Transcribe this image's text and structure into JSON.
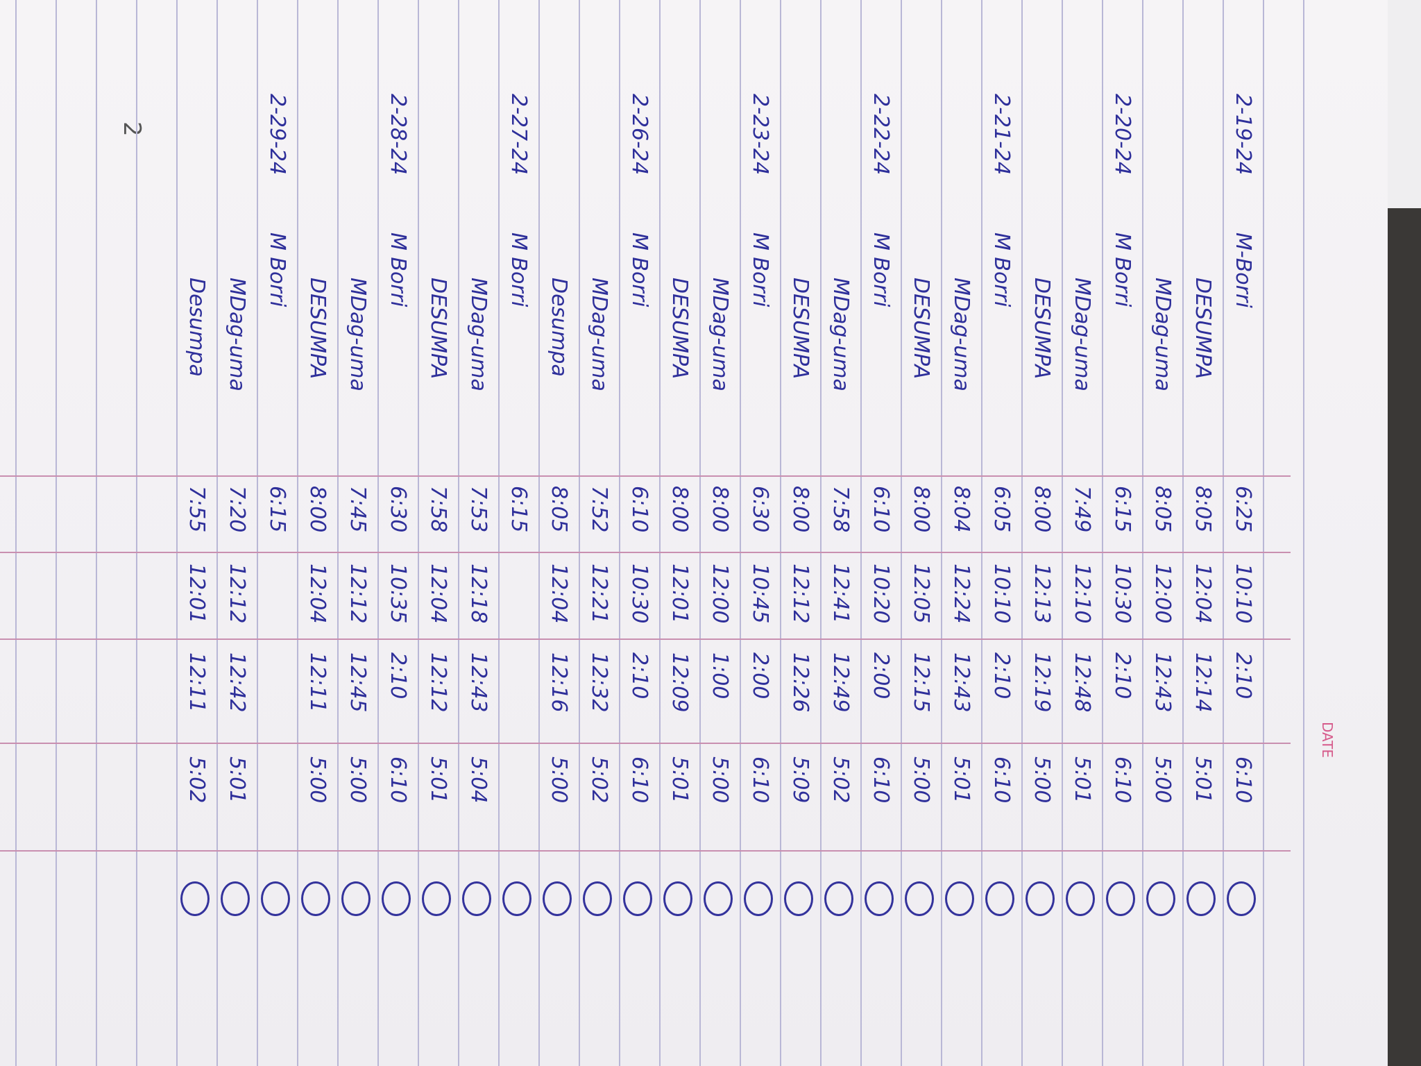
{
  "header": {
    "date_label": "DATE"
  },
  "page_number": "2",
  "rows": [
    {
      "date": "2-19-24",
      "name": "M-Borri",
      "times": [
        "6:25",
        "10:10",
        "2:10",
        "6:10"
      ]
    },
    {
      "name": "DESUMPA",
      "times": [
        "8:05",
        "12:04",
        "12:14",
        "5:01"
      ]
    },
    {
      "name": "MDag-uma",
      "times": [
        "8:05",
        "12:00",
        "12:43",
        "5:00"
      ]
    },
    {
      "date": "2-20-24",
      "name": "M Borri",
      "times": [
        "6:15",
        "10:30",
        "2:10",
        "6:10"
      ]
    },
    {
      "name": "MDag-uma",
      "times": [
        "7:49",
        "12:10",
        "12:48",
        "5:01"
      ]
    },
    {
      "name": "DESUMPA",
      "times": [
        "8:00",
        "12:13",
        "12:19",
        "5:00"
      ]
    },
    {
      "date": "2-21-24",
      "name": "M Borri",
      "times": [
        "6:05",
        "10:10",
        "2:10",
        "6:10"
      ]
    },
    {
      "name": "MDag-uma",
      "times": [
        "8:04",
        "12:24",
        "12:43",
        "5:01"
      ]
    },
    {
      "name": "DESUMPA",
      "times": [
        "8:00",
        "12:05",
        "12:15",
        "5:00"
      ]
    },
    {
      "date": "2-22-24",
      "name": "M Borri",
      "times": [
        "6:10",
        "10:20",
        "2:00",
        "6:10"
      ]
    },
    {
      "name": "MDag-uma",
      "times": [
        "7:58",
        "12:41",
        "12:49",
        "5:02"
      ]
    },
    {
      "name": "DESUMPA",
      "times": [
        "8:00",
        "12:12",
        "12:26",
        "5:09"
      ]
    },
    {
      "date": "2-23-24",
      "name": "M Borri",
      "times": [
        "6:30",
        "10:45",
        "2:00",
        "6:10"
      ]
    },
    {
      "name": "MDag-uma",
      "times": [
        "8:00",
        "12:00",
        "1:00",
        "5:00"
      ]
    },
    {
      "name": "DESUMPA",
      "times": [
        "8:00",
        "12:01",
        "12:09",
        "5:01"
      ]
    },
    {
      "date": "2-26-24",
      "name": "M Borri",
      "times": [
        "6:10",
        "10:30",
        "2:10",
        "6:10"
      ]
    },
    {
      "name": "MDag-uma",
      "times": [
        "7:52",
        "12:21",
        "12:32",
        "5:02"
      ]
    },
    {
      "name": "Desumpa",
      "times": [
        "8:05",
        "12:04",
        "12:16",
        "5:00"
      ]
    },
    {
      "date": "2-27-24",
      "name": "M Borri",
      "times": [
        "6:15"
      ]
    },
    {
      "name": "MDag-uma",
      "times": [
        "7:53",
        "12:18",
        "12:43",
        "5:04"
      ]
    },
    {
      "name": "DESUMPA",
      "times": [
        "7:58",
        "12:04",
        "12:12",
        "5:01"
      ]
    },
    {
      "date": "2-28-24",
      "name": "M Borri",
      "times": [
        "6:30",
        "10:35",
        "2:10",
        "6:10"
      ]
    },
    {
      "name": "MDag-uma",
      "times": [
        "7:45",
        "12:12",
        "12:45",
        "5:00"
      ]
    },
    {
      "name": "DESUMPA",
      "times": [
        "8:00",
        "12:04",
        "12:11",
        "5:00"
      ]
    },
    {
      "date": "2-29-24",
      "name": "M Borri",
      "times": [
        "6:15"
      ]
    },
    {
      "name": "MDag-uma",
      "times": [
        "7:20",
        "12:12",
        "12:42",
        "5:01"
      ]
    },
    {
      "name": "Desumpa",
      "times": [
        "7:55",
        "12:01",
        "12:11",
        "5:02"
      ]
    }
  ]
}
